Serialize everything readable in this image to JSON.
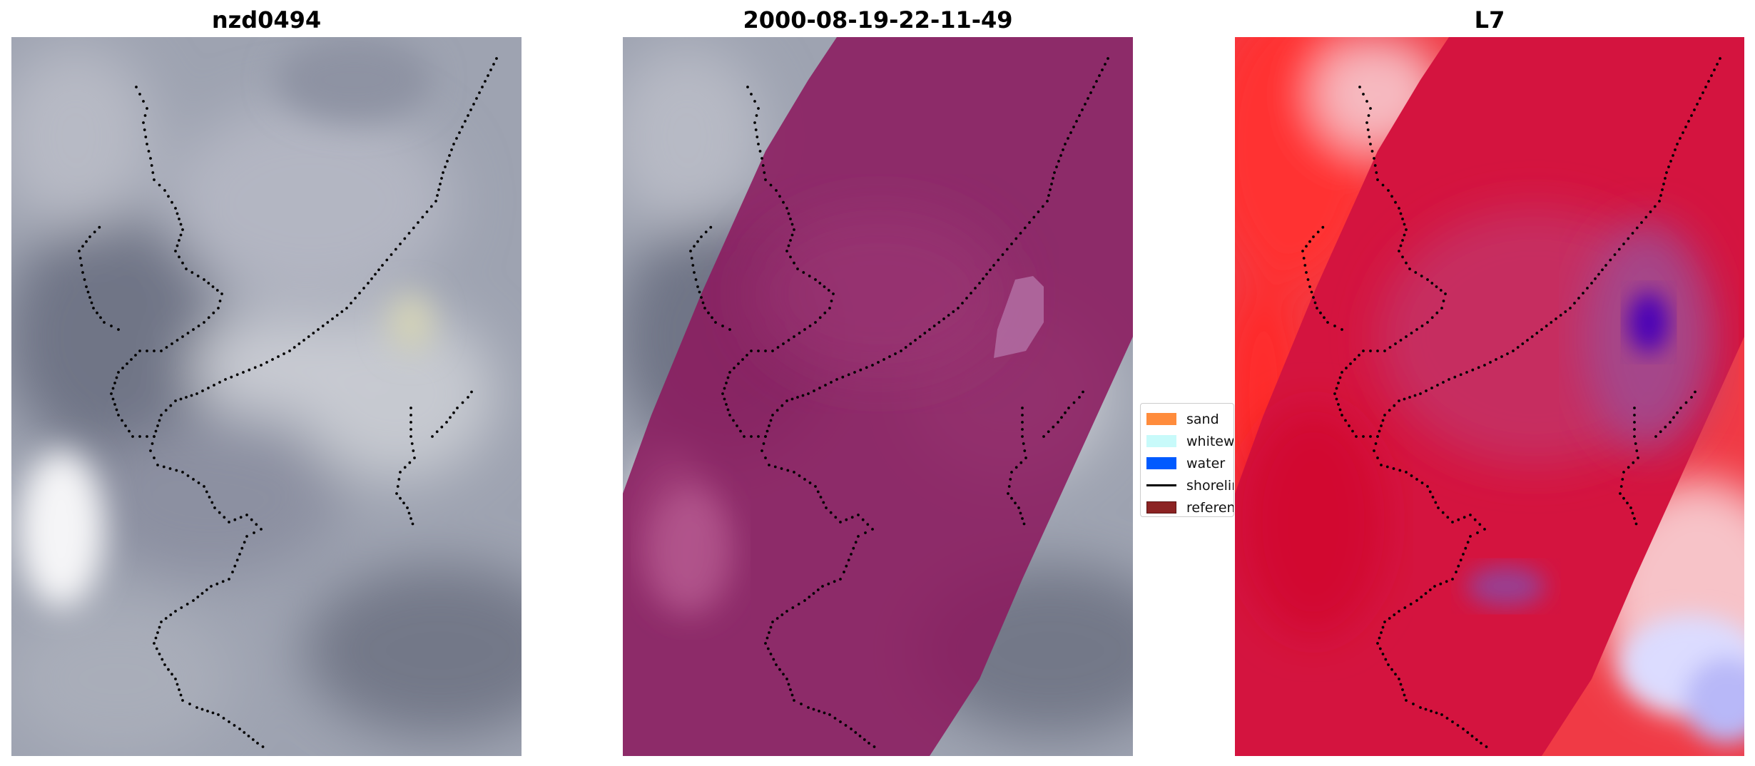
{
  "panels": [
    {
      "title": "nzd0494",
      "image": "satellite-rgb-image"
    },
    {
      "title": "2000-08-19-22-11-49",
      "image": "classified-overlay-image"
    },
    {
      "title": "L7",
      "image": "index-heatmap-image"
    }
  ],
  "legend": {
    "items": [
      {
        "label": "sand",
        "color": "#ff8c3c",
        "icon": "patch"
      },
      {
        "label": "whitewater",
        "color": "#c8fafa",
        "icon": "patch"
      },
      {
        "label": "water",
        "color": "#005aff",
        "icon": "patch"
      },
      {
        "label": "shoreline",
        "color": "#000000",
        "icon": "line"
      },
      {
        "label": "reference shoreline buffer",
        "color": "#8c2323",
        "icon": "patch"
      }
    ]
  },
  "colors": {
    "buffer_overlay": "#8b1a5e",
    "heatmap_red": "#e8002a",
    "heatmap_blue": "#3a00c0",
    "shoreline_dots": "#000000"
  }
}
